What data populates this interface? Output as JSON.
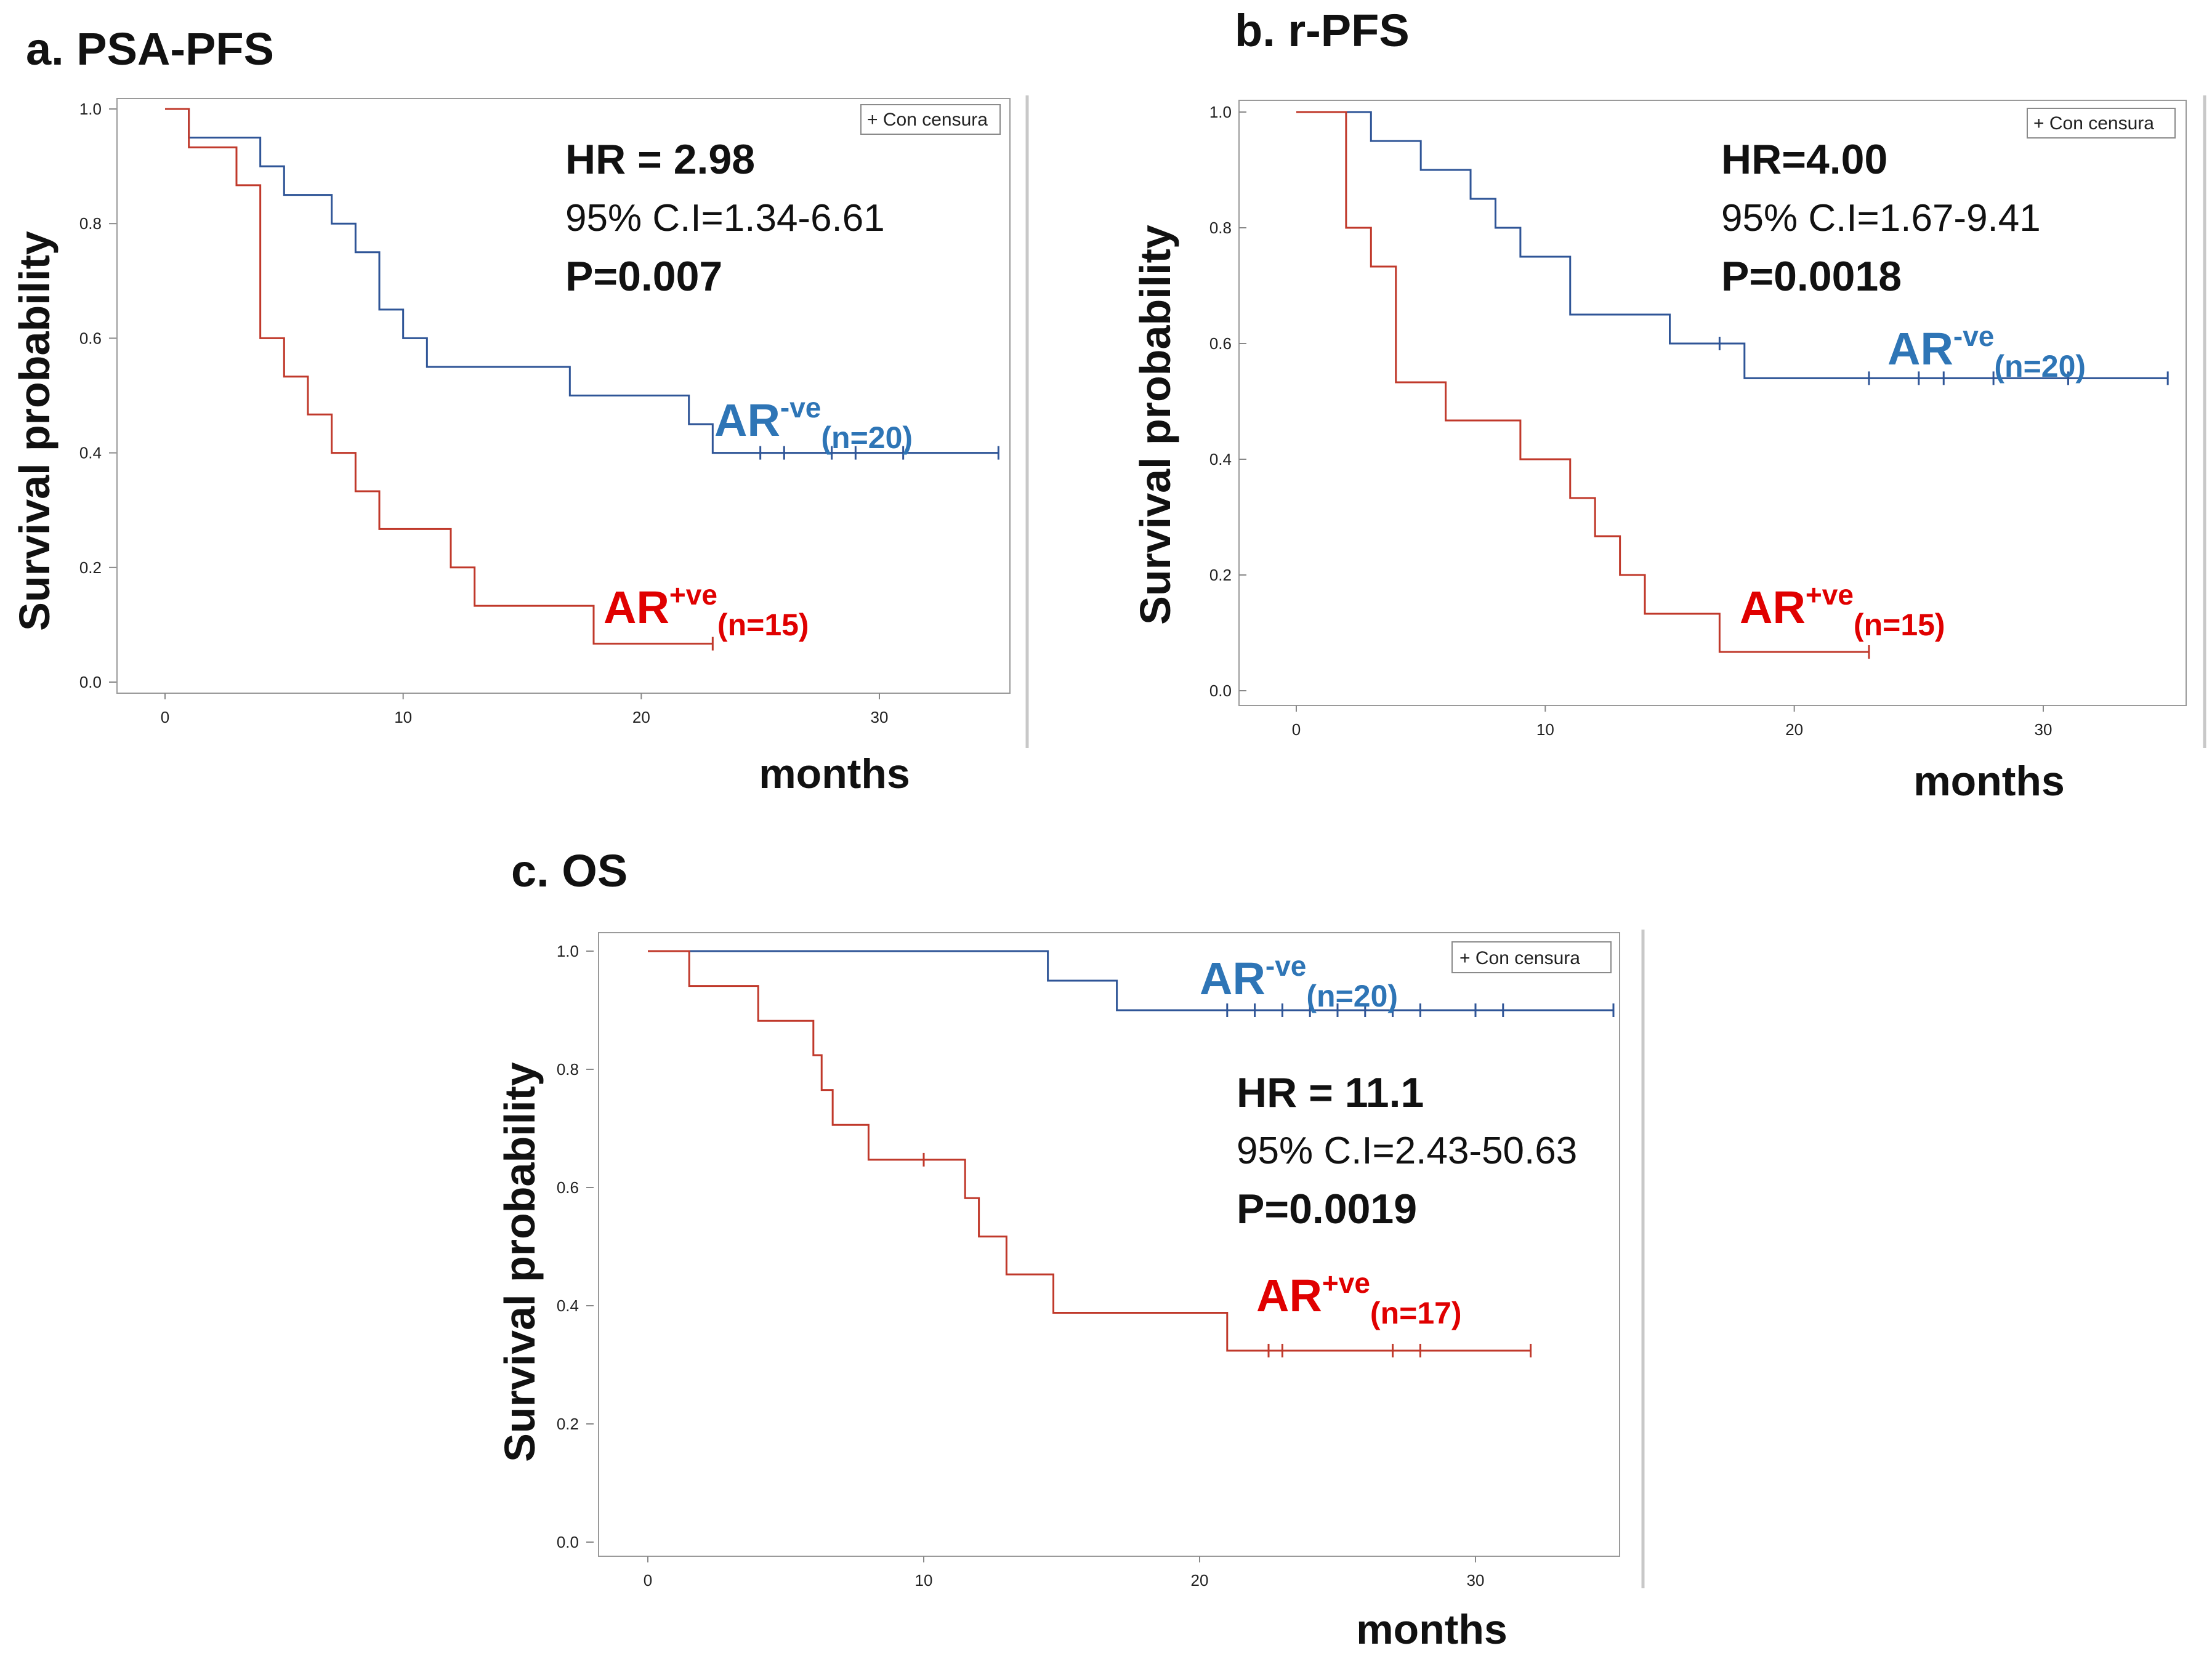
{
  "figure": {
    "colors": {
      "ar_neg": "#2e75b6",
      "ar_pos": "#e00000",
      "curve_blue": "#2f5597",
      "curve_red": "#c0392b"
    }
  },
  "chart_data": [
    {
      "id": "a",
      "type": "line",
      "subtype": "kaplan-meier",
      "title": "a. PSA-PFS",
      "xlabel": "months",
      "ylabel": "Survival probability",
      "xlim": [
        -2,
        36
      ],
      "ylim": [
        0,
        1.0
      ],
      "xticks": [
        0,
        10,
        20,
        30
      ],
      "yticks": [
        0.0,
        0.2,
        0.4,
        0.6,
        0.8,
        1.0
      ],
      "ytick_labels": [
        "0.0",
        "0.2",
        "0.4",
        "0.6",
        "0.8",
        "1.0"
      ],
      "legend": "+ Con censura",
      "stats": {
        "hr": "HR = 2.98",
        "ci": "95% C.I=1.34-6.61",
        "p": "P=0.007"
      },
      "series": [
        {
          "name": "AR-ve",
          "label_main": "AR",
          "label_sup": "-ve",
          "label_sub": "(n=20)",
          "x": [
            0,
            1,
            4,
            5,
            7,
            8,
            9,
            10,
            11,
            17,
            22,
            23,
            35
          ],
          "y": [
            1.0,
            0.95,
            0.9,
            0.85,
            0.8,
            0.75,
            0.65,
            0.6,
            0.55,
            0.5,
            0.45,
            0.4,
            0.4
          ],
          "censored": [
            25,
            26,
            28,
            29,
            31,
            35
          ]
        },
        {
          "name": "AR+ve",
          "label_main": "AR",
          "label_sup": "+ve",
          "label_sub": "(n=15)",
          "x": [
            0,
            1,
            3,
            4,
            5,
            6,
            7,
            8,
            9,
            12,
            13,
            18,
            23
          ],
          "y": [
            1.0,
            0.933,
            0.867,
            0.6,
            0.533,
            0.467,
            0.4,
            0.333,
            0.267,
            0.2,
            0.133,
            0.067,
            0.067
          ],
          "censored": [
            23
          ]
        }
      ]
    },
    {
      "id": "b",
      "type": "line",
      "subtype": "kaplan-meier",
      "title": "b. r-PFS",
      "xlabel": "months",
      "ylabel": "Survival probability",
      "xlim": [
        -2,
        36
      ],
      "ylim": [
        0,
        1.0
      ],
      "xticks": [
        0,
        10,
        20,
        30
      ],
      "yticks": [
        0.0,
        0.2,
        0.4,
        0.6,
        0.8,
        1.0
      ],
      "ytick_labels": [
        "0.0",
        "0.2",
        "0.4",
        "0.6",
        "0.8",
        "1.0"
      ],
      "legend": "+ Con censura",
      "stats": {
        "hr": "HR=4.00",
        "ci": "95% C.I=1.67-9.41",
        "p": "P=0.0018"
      },
      "series": [
        {
          "name": "AR-ve",
          "label_main": "AR",
          "label_sup": "-ve",
          "label_sub": "(n=20)",
          "x": [
            0,
            3,
            5,
            7,
            8,
            9,
            11,
            15,
            18,
            35
          ],
          "y": [
            1.0,
            0.95,
            0.9,
            0.85,
            0.8,
            0.75,
            0.65,
            0.6,
            0.54,
            0.54
          ],
          "censored": [
            17,
            23,
            25,
            26,
            28,
            31,
            35
          ]
        },
        {
          "name": "AR+ve",
          "label_main": "AR",
          "label_sup": "+ve",
          "label_sub": "(n=15)",
          "x": [
            0,
            2,
            3,
            4,
            6,
            9,
            11,
            12,
            13,
            14,
            17,
            23
          ],
          "y": [
            1.0,
            0.8,
            0.733,
            0.533,
            0.467,
            0.4,
            0.333,
            0.267,
            0.2,
            0.133,
            0.067,
            0.067
          ],
          "censored": [
            23
          ]
        }
      ]
    },
    {
      "id": "c",
      "type": "line",
      "subtype": "kaplan-meier",
      "title": "c. OS",
      "xlabel": "months",
      "ylabel": "Survival probability",
      "xlim": [
        -2,
        36
      ],
      "ylim": [
        0,
        1.0
      ],
      "xticks": [
        0,
        10,
        20,
        30
      ],
      "yticks": [
        0.0,
        0.2,
        0.4,
        0.6,
        0.8,
        1.0
      ],
      "ytick_labels": [
        "0.0",
        "0.2",
        "0.4",
        "0.6",
        "0.8",
        "1.0"
      ],
      "legend": "+ Con censura",
      "stats": {
        "hr": "HR = 11.1",
        "ci": "95% C.I=2.43-50.63",
        "p": "P=0.0019"
      },
      "series": [
        {
          "name": "AR-ve",
          "label_main": "AR",
          "label_sup": "-ve",
          "label_sub": "(n=20)",
          "x": [
            0,
            14.5,
            17,
            35
          ],
          "y": [
            1.0,
            0.95,
            0.9,
            0.9
          ],
          "censored": [
            21,
            22,
            23,
            24,
            25,
            26,
            27,
            28,
            30,
            31,
            35
          ]
        },
        {
          "name": "AR+ve",
          "label_main": "AR",
          "label_sup": "+ve",
          "label_sub": "(n=17)",
          "x": [
            0,
            1.5,
            4,
            6,
            6.3,
            6.7,
            8,
            11.5,
            12,
            13,
            14.7,
            21,
            32
          ],
          "y": [
            1.0,
            0.941,
            0.882,
            0.824,
            0.765,
            0.706,
            0.647,
            0.582,
            0.517,
            0.453,
            0.388,
            0.324,
            0.324
          ],
          "censored": [
            10,
            22.5,
            23,
            27,
            28,
            32
          ]
        }
      ]
    }
  ]
}
